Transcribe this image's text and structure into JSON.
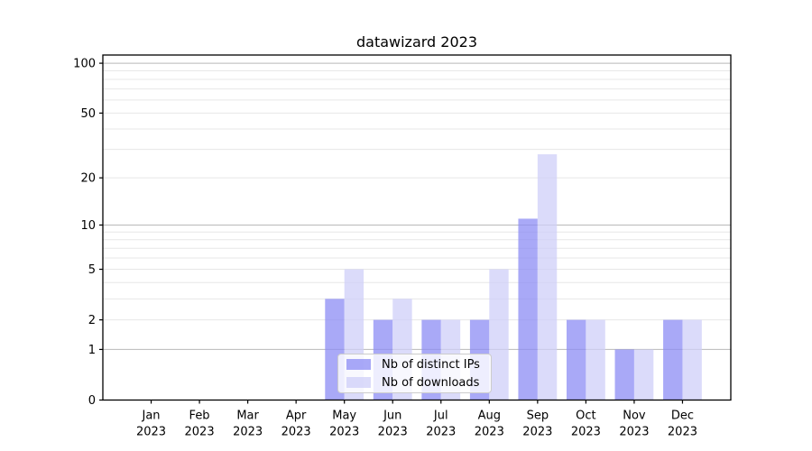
{
  "chart_data": {
    "type": "bar",
    "title": "datawizard 2023",
    "categories": [
      "Jan",
      "Feb",
      "Mar",
      "Apr",
      "May",
      "Jun",
      "Jul",
      "Aug",
      "Sep",
      "Oct",
      "Nov",
      "Dec"
    ],
    "year_label": "2023",
    "series": [
      {
        "name": "Nb of distinct IPs",
        "key": "distinct-ips",
        "color": "rgba(140,140,244,0.75)",
        "values": [
          0,
          0,
          0,
          0,
          3,
          2,
          2,
          2,
          11,
          2,
          1,
          2
        ]
      },
      {
        "name": "Nb of downloads",
        "key": "downloads",
        "color": "rgba(207,207,248,0.75)",
        "values": [
          0,
          0,
          0,
          0,
          5,
          3,
          2,
          5,
          28,
          2,
          1,
          2
        ]
      }
    ],
    "yscale": "log1p",
    "ylim": [
      0,
      112
    ],
    "ytick_values": [
      0,
      1,
      2,
      5,
      10,
      20,
      50,
      100
    ],
    "ytick_labels": [
      "0",
      "1",
      "2",
      "5",
      "10",
      "20",
      "50",
      "100"
    ],
    "grid": {
      "major_values": [
        1,
        10,
        100
      ],
      "minor_values": [
        2,
        3,
        4,
        5,
        6,
        7,
        8,
        9,
        20,
        30,
        40,
        50,
        60,
        70,
        80,
        90
      ],
      "major_color": "#b9b9b9",
      "minor_color": "#e7e7e7"
    },
    "legend_position": "lower center",
    "axis_color": "#000000",
    "text_color": "#000000",
    "background_color": "#ffffff"
  }
}
